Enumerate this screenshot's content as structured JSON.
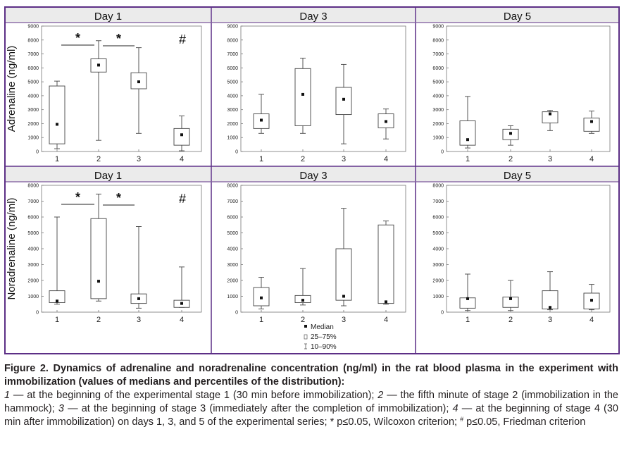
{
  "figure": {
    "frame_color": "#5c2f86",
    "header_fill": "#ebebeb",
    "box_color": "#444444",
    "row_ylabels": [
      "Adrenaline (ng/ml)",
      "Noradrenaline (ng/ml)"
    ],
    "legend": {
      "median": "Median",
      "box": "25–75%",
      "whisker": "10–90%"
    }
  },
  "caption": {
    "title": "Figure 2. Dynamics of adrenaline and noradrenaline concentration (ng/ml) in the rat blood plasma in the experiment with immobilization (values of medians and percentiles of the distribution):",
    "items": [
      {
        "num": "1",
        "text": " — at the beginning of the experimental stage 1 (30 min before immobilization); "
      },
      {
        "num": "2",
        "text": " — the fifth minute of stage 2 (immobilization in the hammock); "
      },
      {
        "num": "3",
        "text": " — at the beginning of stage 3 (immediately after the completion of immobilization); "
      },
      {
        "num": "4",
        "text": " — at the beginning of stage 4 (30 min after immobilization) on days 1, 3, and 5 of the experimental series; "
      }
    ],
    "note_star": "* p≤0.05, Wilcoxon criterion; ",
    "note_hash_symbol": "#",
    "note_hash": " p≤0.05, Friedman criterion"
  },
  "chart_data": [
    {
      "type": "box",
      "title": "Day 1",
      "ylabel": "Adrenaline (ng/ml)",
      "categories": [
        "1",
        "2",
        "3",
        "4"
      ],
      "ylim": [
        0,
        9000
      ],
      "yticks": [
        0,
        1000,
        2000,
        3000,
        4000,
        5000,
        6000,
        7000,
        8000,
        9000
      ],
      "boxes": [
        {
          "category": "1",
          "p10": 200,
          "q1": 550,
          "median": 1950,
          "q3": 4700,
          "p90": 5050
        },
        {
          "category": "2",
          "p10": 800,
          "q1": 5700,
          "median": 6200,
          "q3": 6650,
          "p90": 7950
        },
        {
          "category": "3",
          "p10": 1300,
          "q1": 4500,
          "median": 5000,
          "q3": 5650,
          "p90": 7450
        },
        {
          "category": "4",
          "p10": 50,
          "q1": 450,
          "median": 1200,
          "q3": 1650,
          "p90": 2550
        }
      ],
      "significance": [
        {
          "from": "1",
          "to": "2",
          "label": "*"
        },
        {
          "from": "2",
          "to": "3",
          "label": "*"
        }
      ],
      "annotation": "#"
    },
    {
      "type": "box",
      "title": "Day 3",
      "ylabel": "",
      "categories": [
        "1",
        "2",
        "3",
        "4"
      ],
      "ylim": [
        0,
        9000
      ],
      "yticks": [
        0,
        1000,
        2000,
        3000,
        4000,
        5000,
        6000,
        7000,
        8000,
        9000
      ],
      "boxes": [
        {
          "category": "1",
          "p10": 1300,
          "q1": 1650,
          "median": 2250,
          "q3": 2700,
          "p90": 4100
        },
        {
          "category": "2",
          "p10": 1300,
          "q1": 1850,
          "median": 4100,
          "q3": 5950,
          "p90": 6700
        },
        {
          "category": "3",
          "p10": 550,
          "q1": 2650,
          "median": 3750,
          "q3": 4600,
          "p90": 6250
        },
        {
          "category": "4",
          "p10": 900,
          "q1": 1700,
          "median": 2150,
          "q3": 2700,
          "p90": 3050
        }
      ]
    },
    {
      "type": "box",
      "title": "Day 5",
      "ylabel": "",
      "categories": [
        "1",
        "2",
        "3",
        "4"
      ],
      "ylim": [
        0,
        9000
      ],
      "yticks": [
        0,
        1000,
        2000,
        3000,
        4000,
        5000,
        6000,
        7000,
        8000,
        9000
      ],
      "boxes": [
        {
          "category": "1",
          "p10": 250,
          "q1": 450,
          "median": 850,
          "q3": 2200,
          "p90": 3950
        },
        {
          "category": "2",
          "p10": 450,
          "q1": 850,
          "median": 1300,
          "q3": 1600,
          "p90": 1850
        },
        {
          "category": "3",
          "p10": 1500,
          "q1": 2050,
          "median": 2700,
          "q3": 2850,
          "p90": 2950
        },
        {
          "category": "4",
          "p10": 1300,
          "q1": 1450,
          "median": 2150,
          "q3": 2400,
          "p90": 2900
        }
      ]
    },
    {
      "type": "box",
      "title": "Day 1",
      "ylabel": "Noradrenaline (ng/ml)",
      "categories": [
        "1",
        "2",
        "3",
        "4"
      ],
      "ylim": [
        0,
        8000
      ],
      "yticks": [
        0,
        1000,
        2000,
        3000,
        4000,
        5000,
        6000,
        7000,
        8000
      ],
      "boxes": [
        {
          "category": "1",
          "p10": 500,
          "q1": 600,
          "median": 700,
          "q3": 1350,
          "p90": 6000
        },
        {
          "category": "2",
          "p10": 700,
          "q1": 850,
          "median": 1950,
          "q3": 5900,
          "p90": 7450
        },
        {
          "category": "3",
          "p10": 250,
          "q1": 550,
          "median": 850,
          "q3": 1150,
          "p90": 5400
        },
        {
          "category": "4",
          "p10": 300,
          "q1": 300,
          "median": 550,
          "q3": 750,
          "p90": 2850
        }
      ],
      "significance": [
        {
          "from": "1",
          "to": "2",
          "label": "*"
        },
        {
          "from": "2",
          "to": "3",
          "label": "*"
        }
      ],
      "annotation": "#"
    },
    {
      "type": "box",
      "title": "Day 3",
      "ylabel": "",
      "categories": [
        "1",
        "2",
        "3",
        "4"
      ],
      "ylim": [
        0,
        8000
      ],
      "yticks": [
        0,
        1000,
        2000,
        3000,
        4000,
        5000,
        6000,
        7000,
        8000
      ],
      "boxes": [
        {
          "category": "1",
          "p10": 200,
          "q1": 400,
          "median": 900,
          "q3": 1550,
          "p90": 2200
        },
        {
          "category": "2",
          "p10": 450,
          "q1": 600,
          "median": 750,
          "q3": 1050,
          "p90": 2750
        },
        {
          "category": "3",
          "p10": 400,
          "q1": 750,
          "median": 1000,
          "q3": 4000,
          "p90": 6550
        },
        {
          "category": "4",
          "p10": 500,
          "q1": 550,
          "median": 650,
          "q3": 5500,
          "p90": 5750
        }
      ]
    },
    {
      "type": "box",
      "title": "Day 5",
      "ylabel": "",
      "categories": [
        "1",
        "2",
        "3",
        "4"
      ],
      "ylim": [
        0,
        8000
      ],
      "yticks": [
        0,
        1000,
        2000,
        3000,
        4000,
        5000,
        6000,
        7000,
        8000
      ],
      "boxes": [
        {
          "category": "1",
          "p10": 100,
          "q1": 250,
          "median": 850,
          "q3": 900,
          "p90": 2400
        },
        {
          "category": "2",
          "p10": 100,
          "q1": 300,
          "median": 850,
          "q3": 950,
          "p90": 2000
        },
        {
          "category": "3",
          "p10": 150,
          "q1": 200,
          "median": 300,
          "q3": 1350,
          "p90": 2550
        },
        {
          "category": "4",
          "p10": 150,
          "q1": 200,
          "median": 750,
          "q3": 1200,
          "p90": 1750
        }
      ]
    }
  ]
}
